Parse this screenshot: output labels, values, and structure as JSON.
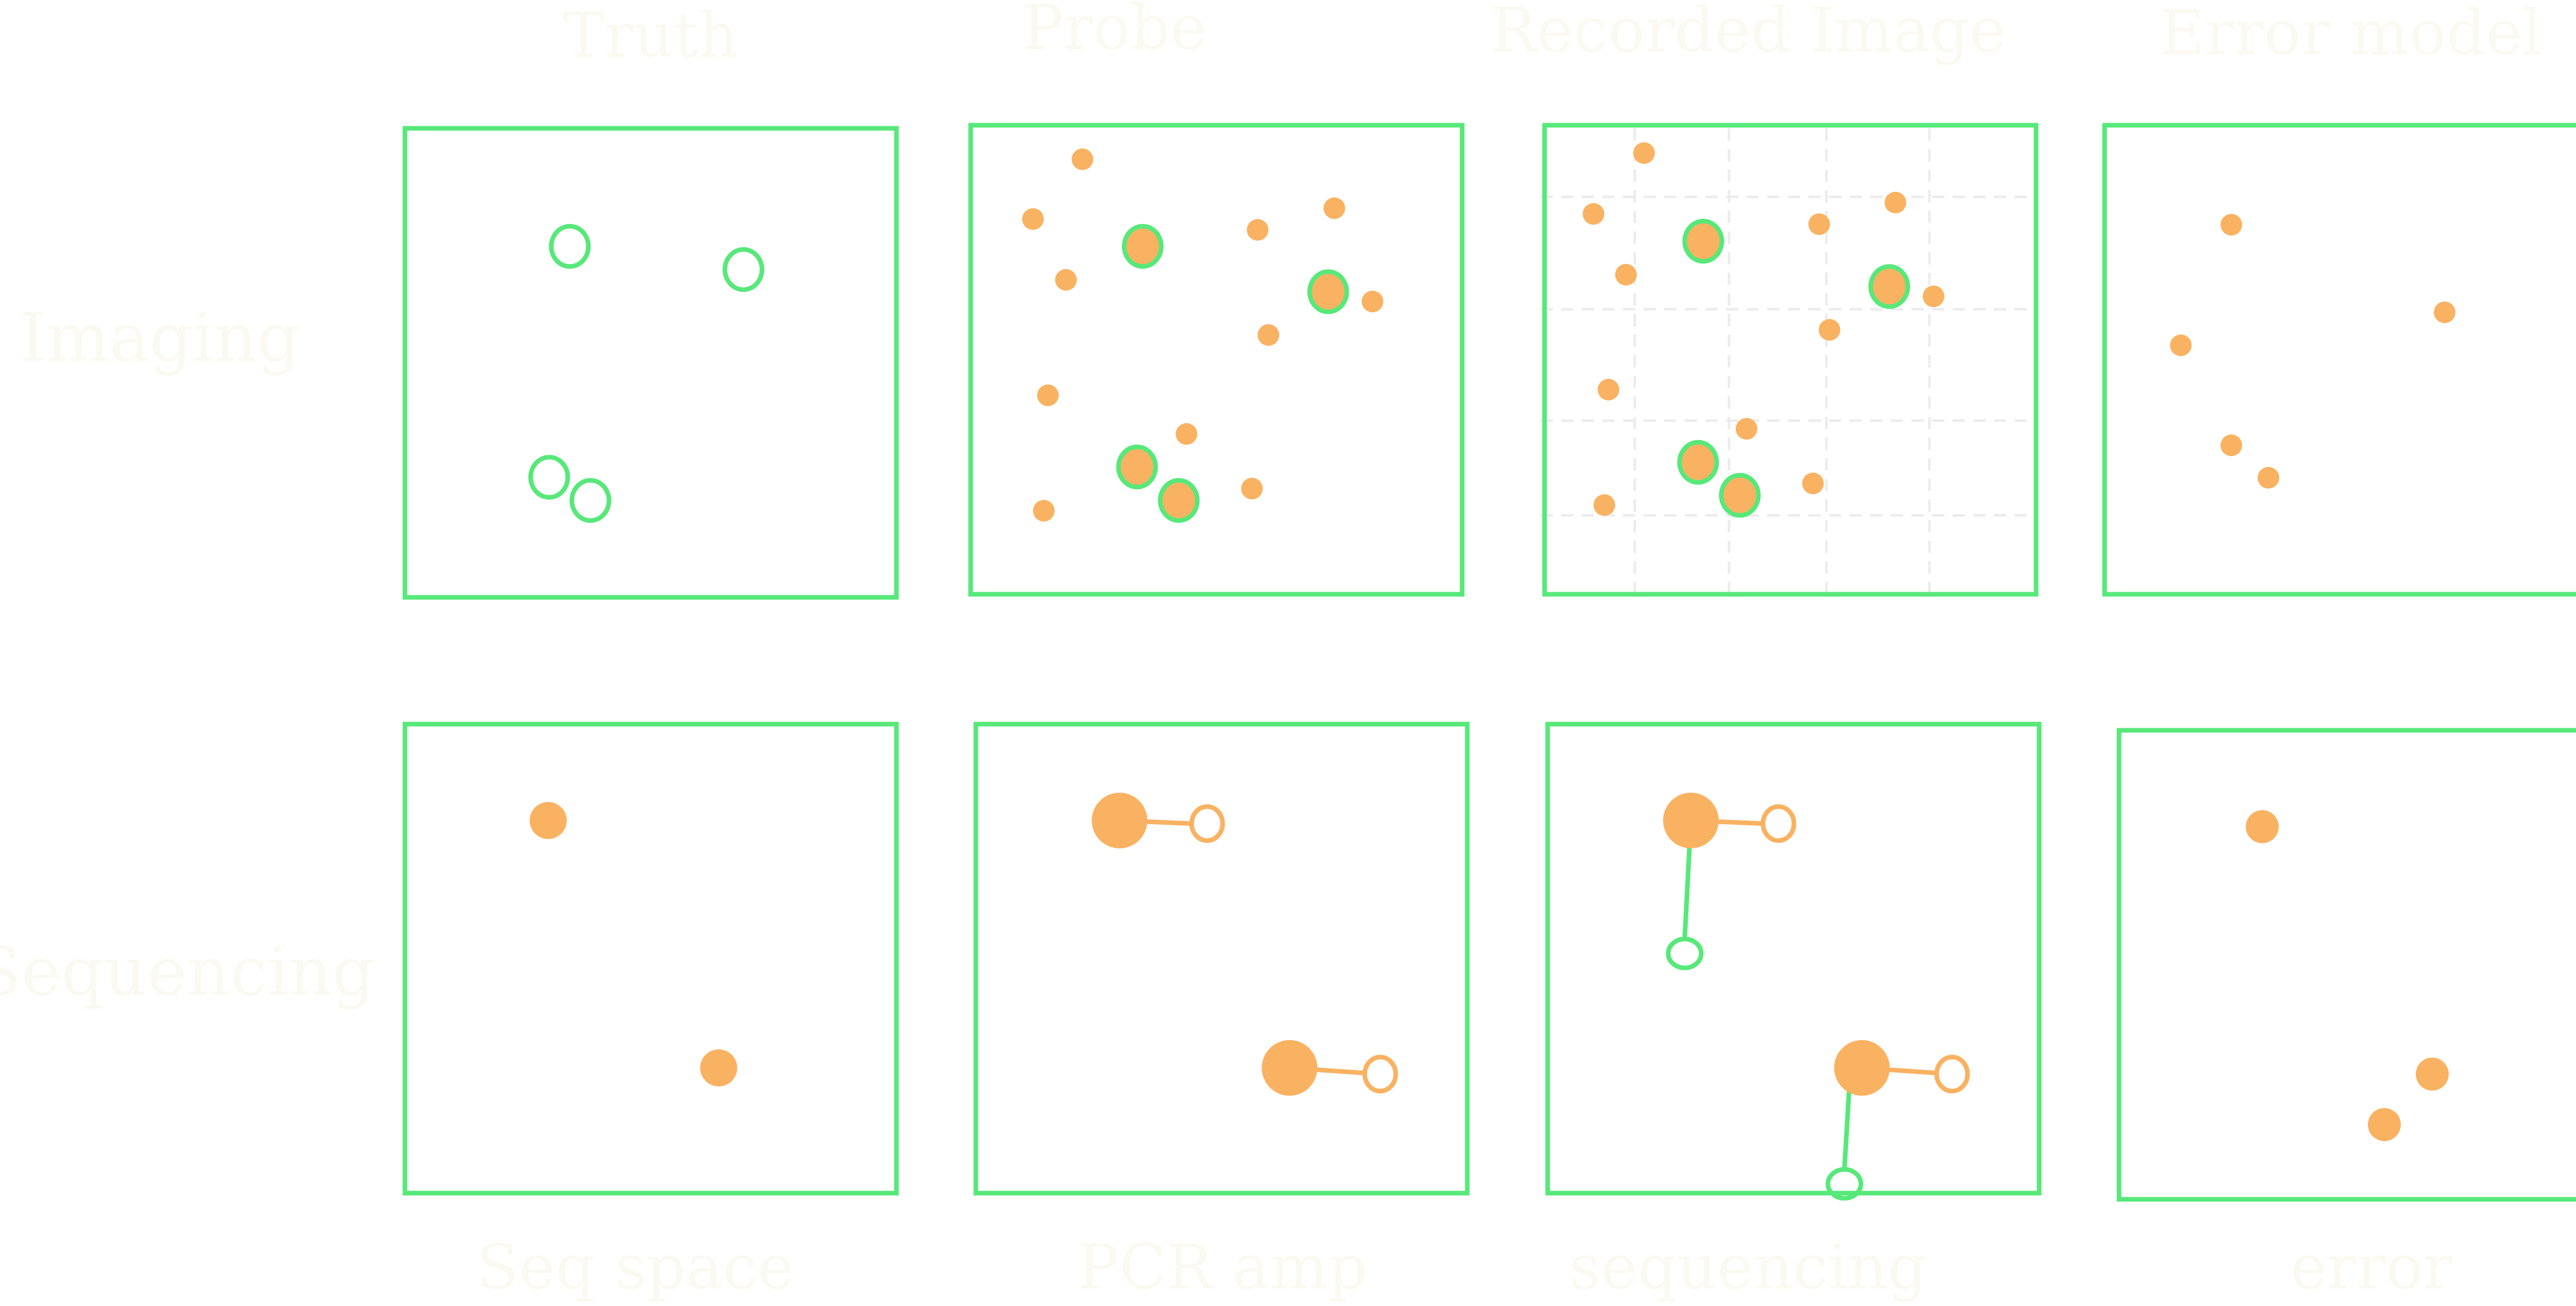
{
  "column_headers": {
    "truth": "Truth",
    "probe": "Probe",
    "recorded_image": "Recorded Image",
    "error_model": "Error model"
  },
  "row_labels": {
    "imaging": "Imaging",
    "sequencing": "Sequencing"
  },
  "bottom_labels": {
    "seq_space": "Seq space",
    "pcr_amp": "PCR amp",
    "sequencing": "sequencing",
    "error": "error"
  },
  "colors": {
    "frame": "#58e87a",
    "marker": "#f9b262",
    "label_text": "#fbfaf1",
    "grid": "#ececec"
  }
}
